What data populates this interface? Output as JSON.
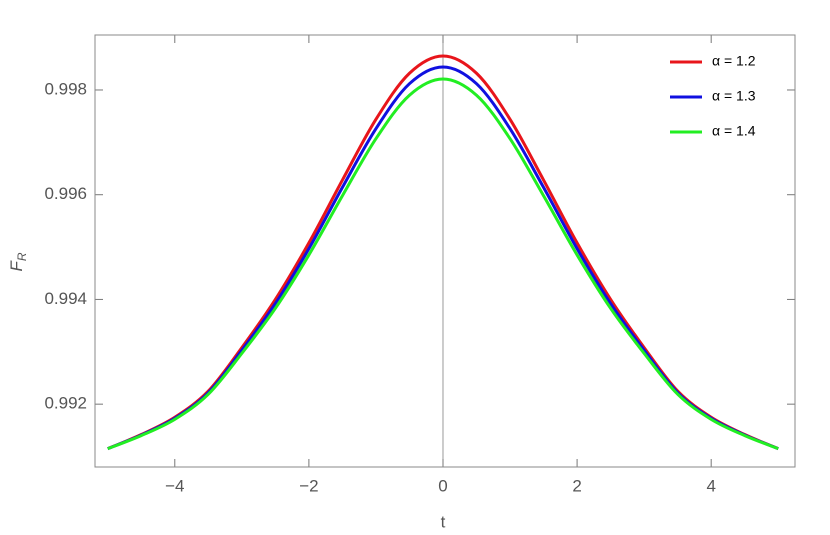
{
  "chart_data": {
    "type": "line",
    "xlabel": "t",
    "ylabel": {
      "text": "F",
      "subscript": "R"
    },
    "x": [
      -5,
      -4.5,
      -4,
      -3.5,
      -3,
      -2.5,
      -2,
      -1.5,
      -1,
      -0.5,
      0,
      0.5,
      1,
      1.5,
      2,
      2.5,
      3,
      3.5,
      4,
      4.5,
      5
    ],
    "series": [
      {
        "name": "α = 1.2",
        "color": "#e8151b",
        "values": [
          0.99115,
          0.99142,
          0.99175,
          0.99225,
          0.99308,
          0.994,
          0.99508,
          0.99628,
          0.99744,
          0.99832,
          0.99865,
          0.99832,
          0.99744,
          0.99628,
          0.99508,
          0.994,
          0.99308,
          0.99225,
          0.99175,
          0.99142,
          0.99115
        ]
      },
      {
        "name": "α = 1.3",
        "color": "#1010e0",
        "values": [
          0.99115,
          0.99141,
          0.99173,
          0.99222,
          0.99303,
          0.99392,
          0.99497,
          0.99614,
          0.99726,
          0.99812,
          0.99844,
          0.99812,
          0.99726,
          0.99614,
          0.99497,
          0.99392,
          0.99303,
          0.99222,
          0.99173,
          0.99141,
          0.99115
        ]
      },
      {
        "name": "α = 1.4",
        "color": "#22ee22",
        "values": [
          0.99115,
          0.9914,
          0.99171,
          0.99219,
          0.99297,
          0.99383,
          0.99485,
          0.99598,
          0.99707,
          0.9979,
          0.99821,
          0.9979,
          0.99707,
          0.99598,
          0.99485,
          0.99383,
          0.99297,
          0.99219,
          0.99171,
          0.9914,
          0.99115
        ]
      }
    ],
    "xlim": [
      -5.19,
      5.25
    ],
    "ylim": [
      0.9908,
      0.99905
    ],
    "xticks": [
      {
        "value": -4,
        "label": "−4"
      },
      {
        "value": -2,
        "label": "−2"
      },
      0,
      2,
      4
    ],
    "yticks": [
      0.992,
      0.994,
      0.996,
      0.998
    ],
    "legend": "top-right"
  }
}
